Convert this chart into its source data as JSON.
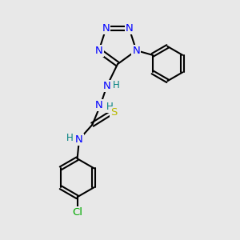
{
  "background_color": "#e8e8e8",
  "atom_colors": {
    "N": "#0000ff",
    "S": "#b8b800",
    "Cl": "#00aa00",
    "C": "#000000",
    "H": "#008080"
  }
}
